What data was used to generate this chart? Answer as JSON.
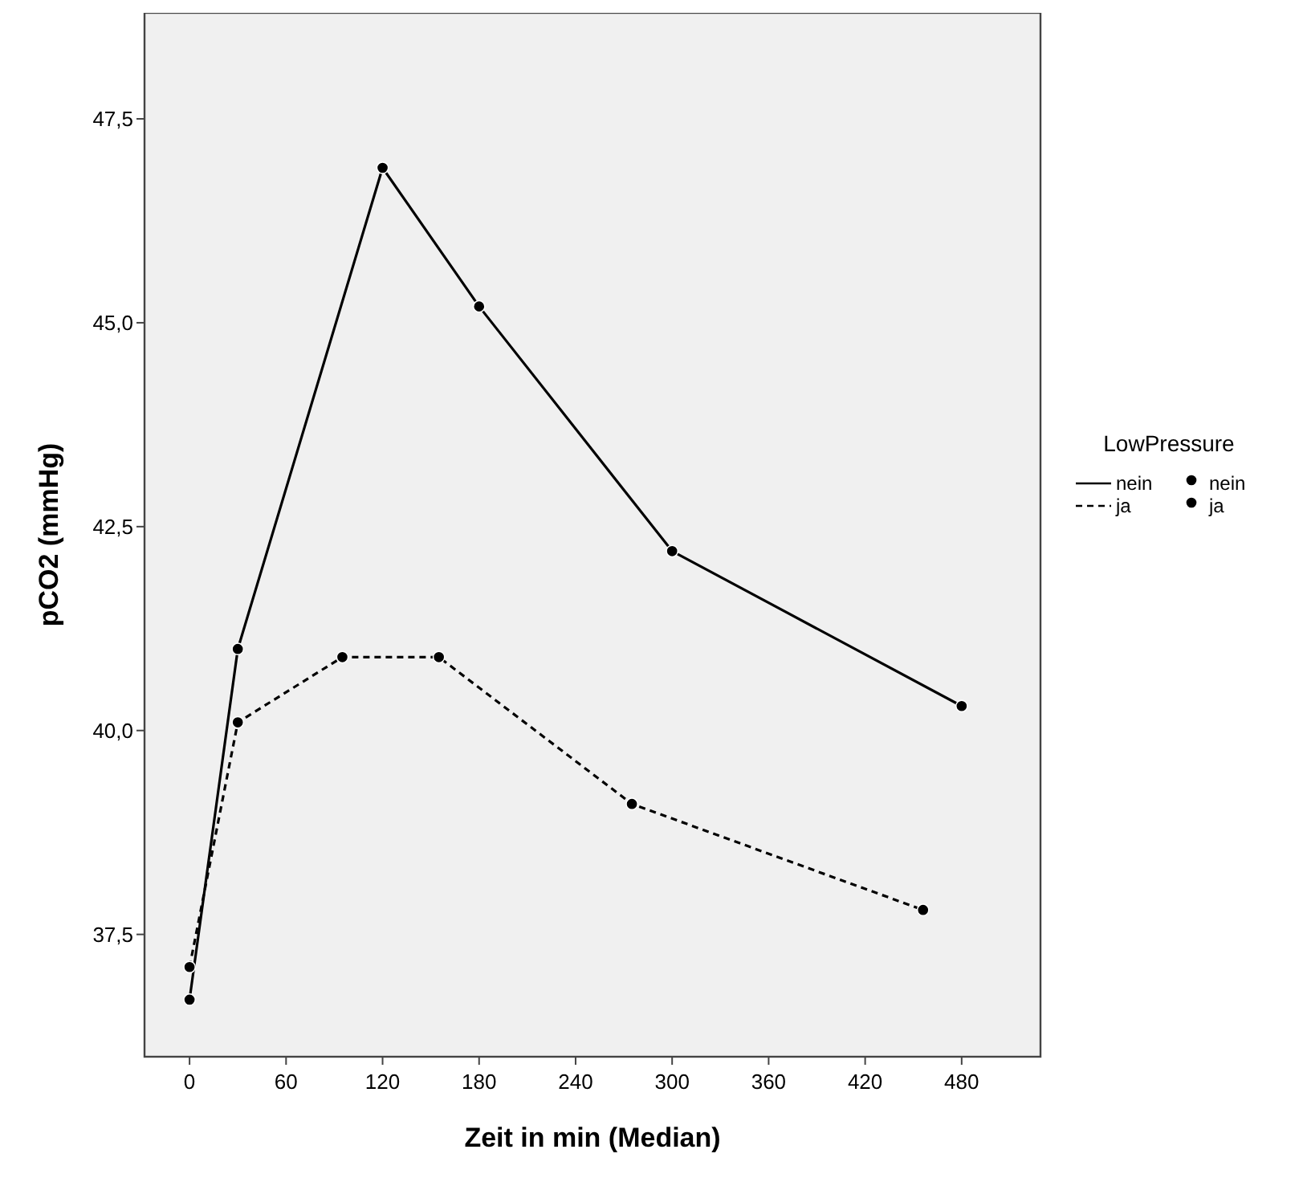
{
  "chart_data": {
    "type": "line",
    "xlabel": "Zeit in min (Median)",
    "ylabel": "pCO2 (mmHg)",
    "legend_title": "LowPressure",
    "legend": "right",
    "marker": "circle",
    "grid": false,
    "xlim": [
      -28,
      529
    ],
    "xticks": [
      0,
      60,
      120,
      180,
      240,
      300,
      360,
      420,
      480
    ],
    "ylim": [
      36,
      48.8
    ],
    "yticks": [
      {
        "value": 37.5,
        "label": "37,5"
      },
      {
        "value": 40,
        "label": "40,0"
      },
      {
        "value": 42.5,
        "label": "42,5"
      },
      {
        "value": 45,
        "label": "45,0"
      },
      {
        "value": 47.5,
        "label": "47,5"
      }
    ],
    "series": [
      {
        "name": "nein",
        "color": "#000000",
        "line_style": "solid",
        "x": [
          0,
          30,
          120,
          180,
          300,
          480
        ],
        "values": [
          36.7,
          41.0,
          46.9,
          45.2,
          42.2,
          40.3
        ]
      },
      {
        "name": "ja",
        "color": "#000000",
        "line_style": "dashed",
        "x": [
          0,
          30,
          95,
          155,
          275,
          456
        ],
        "values": [
          37.1,
          40.1,
          40.9,
          40.9,
          39.1,
          37.8
        ]
      }
    ]
  }
}
